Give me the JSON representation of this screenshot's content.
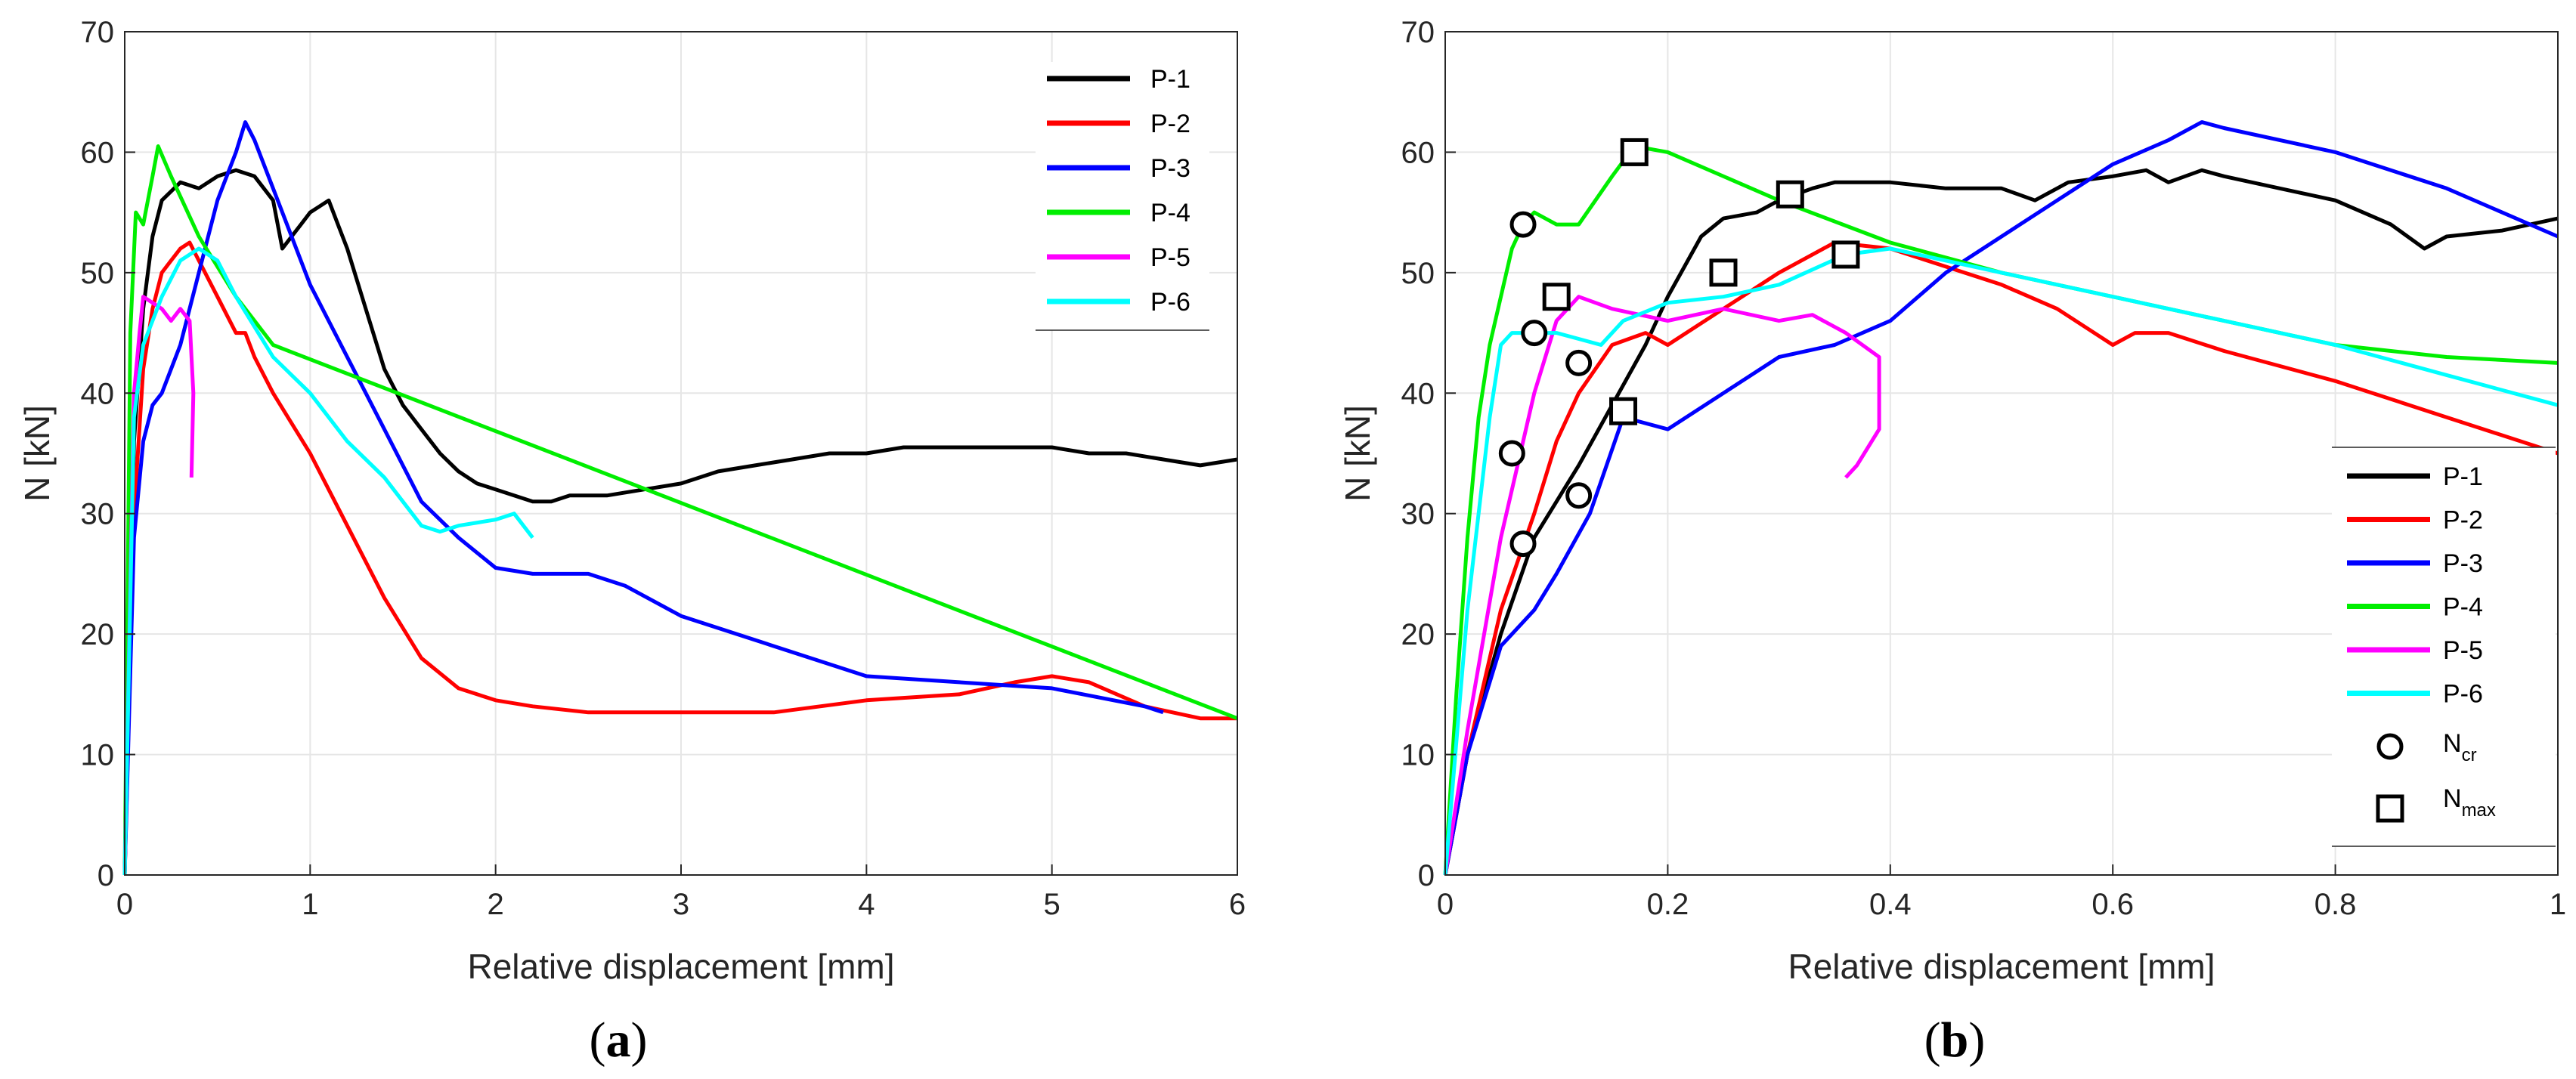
{
  "colors": {
    "P-1": "#000000",
    "P-2": "#ff0000",
    "P-3": "#0000ff",
    "P-4": "#00ee00",
    "P-5": "#ff00ff",
    "P-6": "#00ffff",
    "grid": "#e6e6e6",
    "axis": "#262626"
  },
  "chart_data": [
    {
      "panel_label": "a",
      "type": "line",
      "xlabel": "Relative displacement [mm]",
      "ylabel": "N [kN]",
      "xlim": [
        0,
        6
      ],
      "ylim": [
        0,
        70
      ],
      "xticks": [
        "0",
        "1",
        "2",
        "3",
        "4",
        "5",
        "6"
      ],
      "yticks": [
        "0",
        "10",
        "20",
        "30",
        "40",
        "50",
        "60",
        "70"
      ],
      "grid": true,
      "legend_position": "top-right",
      "series": [
        {
          "name": "P-1",
          "x": [
            0,
            0.05,
            0.1,
            0.15,
            0.2,
            0.3,
            0.4,
            0.5,
            0.6,
            0.7,
            0.8,
            0.85,
            0.9,
            0.95,
            1.0,
            1.05,
            1.1,
            1.15,
            1.2,
            1.3,
            1.4,
            1.5,
            1.6,
            1.7,
            1.8,
            1.9,
            2.0,
            2.1,
            2.2,
            2.3,
            2.4,
            2.6,
            2.8,
            3.0,
            3.2,
            3.4,
            3.6,
            3.8,
            4.0,
            4.2,
            4.4,
            4.6,
            4.8,
            5.0,
            5.2,
            5.4,
            5.6,
            5.8,
            6.0
          ],
          "y": [
            0,
            36,
            47,
            53,
            56,
            57.5,
            57,
            58,
            58.5,
            58,
            56,
            52,
            53,
            54,
            55,
            55.5,
            56,
            54,
            52,
            47,
            42,
            39,
            37,
            35,
            33.5,
            32.5,
            32,
            31.5,
            31,
            31,
            31.5,
            31.5,
            32,
            32.5,
            33.5,
            34,
            34.5,
            35,
            35,
            35.5,
            35.5,
            35.5,
            35.5,
            35.5,
            35,
            35,
            34.5,
            34,
            34.5
          ]
        },
        {
          "name": "P-2",
          "x": [
            0,
            0.05,
            0.1,
            0.15,
            0.2,
            0.25,
            0.3,
            0.35,
            0.4,
            0.5,
            0.6,
            0.65,
            0.7,
            0.8,
            1.0,
            1.2,
            1.4,
            1.6,
            1.8,
            2.0,
            2.2,
            2.5,
            3.0,
            3.5,
            4.0,
            4.5,
            4.8,
            5.0,
            5.2,
            5.5,
            5.8,
            6.0
          ],
          "y": [
            0,
            30,
            42,
            47,
            50,
            51,
            52,
            52.5,
            51,
            48,
            45,
            45,
            43,
            40,
            35,
            29,
            23,
            18,
            15.5,
            14.5,
            14,
            13.5,
            13.5,
            13.5,
            14.5,
            15,
            16,
            16.5,
            16,
            14,
            13,
            13
          ]
        },
        {
          "name": "P-3",
          "x": [
            0,
            0.05,
            0.1,
            0.15,
            0.2,
            0.3,
            0.4,
            0.5,
            0.6,
            0.65,
            0.7,
            0.8,
            0.9,
            1.0,
            1.2,
            1.4,
            1.6,
            1.8,
            2.0,
            2.2,
            2.5,
            2.7,
            3.0,
            3.5,
            4.0,
            4.5,
            5.0,
            5.5,
            5.6
          ],
          "y": [
            0,
            28,
            36,
            39,
            40,
            44,
            50,
            56,
            60,
            62.5,
            61,
            57,
            53,
            49,
            43,
            37,
            31,
            28,
            25.5,
            25,
            25,
            24,
            21.5,
            19,
            16.5,
            16,
            15.5,
            14,
            13.5
          ]
        },
        {
          "name": "P-4",
          "x": [
            0,
            0.03,
            0.06,
            0.1,
            0.15,
            0.18,
            0.25,
            0.4,
            0.6,
            0.8,
            6.0
          ],
          "y": [
            0,
            45,
            55,
            54,
            58,
            60.5,
            58,
            53,
            48,
            44,
            13
          ]
        },
        {
          "name": "P-5",
          "x": [
            0,
            0.05,
            0.08,
            0.1,
            0.15,
            0.2,
            0.25,
            0.3,
            0.35,
            0.37,
            0.36
          ],
          "y": [
            0,
            40,
            45,
            48,
            47.5,
            47,
            46,
            47,
            46,
            40,
            33
          ]
        },
        {
          "name": "P-6",
          "x": [
            0,
            0.05,
            0.1,
            0.2,
            0.3,
            0.4,
            0.5,
            0.6,
            0.8,
            1.0,
            1.2,
            1.4,
            1.5,
            1.6,
            1.7,
            1.8,
            2.0,
            2.1,
            2.2
          ],
          "y": [
            0,
            38,
            44,
            48,
            51,
            52,
            51,
            48,
            43,
            40,
            36,
            33,
            31,
            29,
            28.5,
            29,
            29.5,
            30,
            28
          ]
        }
      ]
    },
    {
      "panel_label": "b",
      "type": "line",
      "xlabel": "Relative displacement [mm]",
      "ylabel": "N [kN]",
      "xlim": [
        0,
        1
      ],
      "ylim": [
        0,
        70
      ],
      "xticks": [
        "0",
        "0.2",
        "0.4",
        "0.6",
        "0.8",
        "1"
      ],
      "yticks": [
        "0",
        "10",
        "20",
        "30",
        "40",
        "50",
        "60",
        "70"
      ],
      "grid": true,
      "legend_position": "bottom-right",
      "series": [
        {
          "name": "P-1",
          "x": [
            0,
            0.02,
            0.05,
            0.08,
            0.1,
            0.12,
            0.15,
            0.18,
            0.2,
            0.23,
            0.25,
            0.28,
            0.3,
            0.33,
            0.35,
            0.4,
            0.45,
            0.5,
            0.53,
            0.56,
            0.6,
            0.63,
            0.65,
            0.68,
            0.7,
            0.75,
            0.8,
            0.85,
            0.88,
            0.9,
            0.95,
            1.0
          ],
          "y": [
            0,
            10,
            20,
            28,
            31,
            34,
            39,
            44,
            48,
            53,
            54.5,
            55,
            56,
            57,
            57.5,
            57.5,
            57,
            57,
            56,
            57.5,
            58,
            58.5,
            57.5,
            58.5,
            58,
            57,
            56,
            54,
            52,
            53,
            53.5,
            54.5
          ]
        },
        {
          "name": "P-2",
          "x": [
            0,
            0.02,
            0.05,
            0.08,
            0.1,
            0.12,
            0.15,
            0.18,
            0.2,
            0.25,
            0.3,
            0.35,
            0.4,
            0.5,
            0.55,
            0.6,
            0.62,
            0.65,
            0.7,
            0.8,
            0.9,
            1.0
          ],
          "y": [
            0,
            10,
            22,
            30,
            36,
            40,
            44,
            45,
            44,
            47,
            50,
            52.5,
            52,
            49,
            47,
            44,
            45,
            45,
            43.5,
            41,
            38,
            35
          ]
        },
        {
          "name": "P-3",
          "x": [
            0,
            0.02,
            0.05,
            0.08,
            0.1,
            0.13,
            0.16,
            0.2,
            0.25,
            0.3,
            0.35,
            0.4,
            0.45,
            0.5,
            0.55,
            0.6,
            0.65,
            0.68,
            0.7,
            0.8,
            0.9,
            1.0
          ],
          "y": [
            0,
            10,
            19,
            22,
            25,
            30,
            38,
            37,
            40,
            43,
            44,
            46,
            50,
            53,
            56,
            59,
            61,
            62.5,
            62,
            60,
            57,
            53
          ]
        },
        {
          "name": "P-4",
          "x": [
            0,
            0.01,
            0.02,
            0.03,
            0.04,
            0.05,
            0.06,
            0.07,
            0.08,
            0.1,
            0.12,
            0.15,
            0.17,
            0.2,
            0.3,
            0.4,
            0.5,
            0.6,
            0.7,
            0.8,
            0.9,
            1.0
          ],
          "y": [
            0,
            15,
            28,
            38,
            44,
            48,
            52,
            54,
            55,
            54,
            54,
            58,
            60.5,
            60,
            56,
            52.5,
            50,
            48,
            46,
            44,
            43,
            42.5
          ]
        },
        {
          "name": "P-5",
          "x": [
            0,
            0.02,
            0.05,
            0.08,
            0.1,
            0.12,
            0.15,
            0.2,
            0.25,
            0.3,
            0.33,
            0.36,
            0.39,
            0.39,
            0.37,
            0.36
          ],
          "y": [
            0,
            12,
            28,
            40,
            46,
            48,
            47,
            46,
            47,
            46,
            46.5,
            45,
            43,
            37,
            34,
            33
          ]
        },
        {
          "name": "P-6",
          "x": [
            0,
            0.02,
            0.04,
            0.05,
            0.06,
            0.08,
            0.1,
            0.12,
            0.14,
            0.16,
            0.2,
            0.25,
            0.3,
            0.36,
            0.4,
            0.45,
            0.5,
            0.6,
            0.7,
            0.8,
            0.9,
            1.0
          ],
          "y": [
            0,
            22,
            38,
            44,
            45,
            45,
            45,
            44.5,
            44,
            46,
            47.5,
            48,
            49,
            51.5,
            52,
            51,
            50,
            48,
            46,
            44,
            41.5,
            39
          ]
        },
        {
          "name": "N_cr",
          "marker": "circle",
          "x": [
            0.07,
            0.08,
            0.06,
            0.12,
            0.07,
            0.12
          ],
          "y": [
            54,
            45,
            35,
            42.5,
            27.5,
            31.5
          ]
        },
        {
          "name": "N_max",
          "marker": "square",
          "x": [
            0.17,
            0.31,
            0.1,
            0.25,
            0.36,
            0.16
          ],
          "y": [
            60,
            56.5,
            48,
            50,
            51.5,
            38.5
          ]
        }
      ]
    }
  ],
  "legend_a": [
    "P-1",
    "P-2",
    "P-3",
    "P-4",
    "P-5",
    "P-6"
  ],
  "legend_b": [
    "P-1",
    "P-2",
    "P-3",
    "P-4",
    "P-5",
    "P-6"
  ],
  "legend_b_markers": {
    "cr_main": "N",
    "cr_sub": "cr",
    "max_main": "N",
    "max_sub": "max"
  },
  "captions": {
    "a": "a",
    "b": "b",
    "open": "(",
    "close": ")"
  }
}
